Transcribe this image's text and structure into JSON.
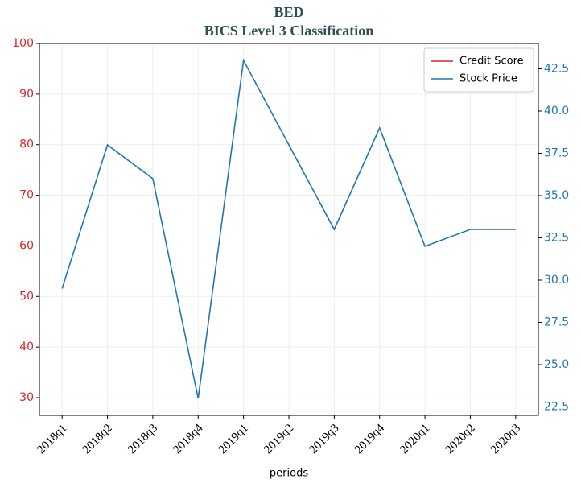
{
  "chart_data": {
    "type": "line",
    "title": "BED",
    "subtitle": "BICS Level 3 Classification",
    "xlabel": "periods",
    "categories": [
      "2018q1",
      "2018q2",
      "2018q3",
      "2018q4",
      "2019q1",
      "2019q2",
      "2019q3",
      "2019q4",
      "2020q1",
      "2020q2",
      "2020q3"
    ],
    "series": [
      {
        "name": "Credit Score",
        "color": "#d62728",
        "values": [
          null,
          null,
          null,
          null,
          null,
          null,
          null,
          null,
          null,
          null,
          null
        ]
      },
      {
        "name": "Stock Price",
        "color": "#1f77b4",
        "axis": "y2",
        "values": [
          29.5,
          38.0,
          36.0,
          23.0,
          43.0,
          38.0,
          33.0,
          39.0,
          32.0,
          33.0,
          33.0
        ]
      }
    ],
    "ylim": [
      26.5,
      100
    ],
    "yticks": [
      30,
      40,
      50,
      60,
      70,
      80,
      90,
      100
    ],
    "y_color": "#d62728",
    "y2lim": [
      22.0,
      44.0
    ],
    "y2ticks": [
      22.5,
      {
        "value": 25,
        "label": "25.0"
      },
      27.5,
      {
        "value": 30,
        "label": "30.0"
      },
      32.5,
      {
        "value": 35,
        "label": "35.0"
      },
      37.5,
      {
        "value": 40,
        "label": "40.0"
      },
      42.5
    ],
    "y2_color": "#1f77b4",
    "grid": true,
    "legend": "upper right"
  }
}
